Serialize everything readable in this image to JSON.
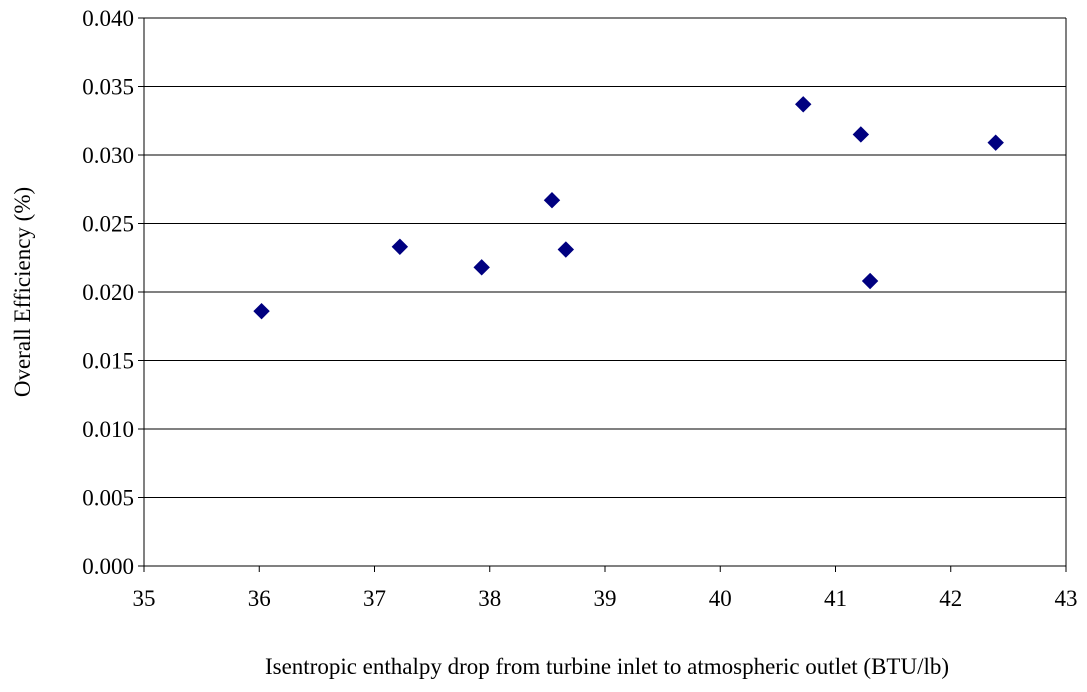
{
  "chart_data": {
    "type": "scatter",
    "title": "",
    "xlabel": "Isentropic enthalpy drop from turbine inlet to atmospheric outlet (BTU/lb)",
    "ylabel": "Overall Efficiency (%)",
    "xlim": [
      35,
      43
    ],
    "ylim": [
      0.0,
      0.04
    ],
    "x_ticks": [
      "35",
      "36",
      "37",
      "38",
      "39",
      "40",
      "41",
      "42",
      "43"
    ],
    "y_ticks": [
      "0.000",
      "0.005",
      "0.010",
      "0.015",
      "0.020",
      "0.025",
      "0.030",
      "0.035",
      "0.040"
    ],
    "grid": "horizontal",
    "marker": "diamond",
    "colors": {
      "marker": "#000080",
      "grid": "#000000",
      "axis": "#000000"
    },
    "series": [
      {
        "x": [
          36.02,
          37.22,
          37.93,
          38.54,
          38.66,
          40.72,
          41.22,
          41.3,
          42.39
        ],
        "y": [
          0.0186,
          0.0233,
          0.0218,
          0.0267,
          0.0231,
          0.0337,
          0.0315,
          0.0208,
          0.0309
        ]
      }
    ]
  }
}
